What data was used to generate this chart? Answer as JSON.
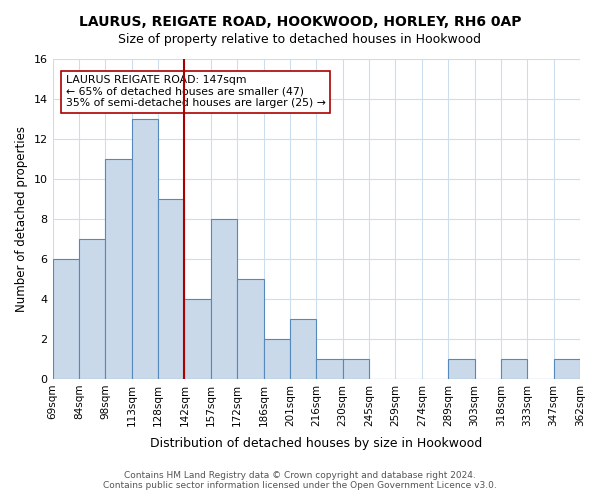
{
  "title_line1": "LAURUS, REIGATE ROAD, HOOKWOOD, HORLEY, RH6 0AP",
  "title_line2": "Size of property relative to detached houses in Hookwood",
  "xlabel": "Distribution of detached houses by size in Hookwood",
  "ylabel": "Number of detached properties",
  "bin_labels": [
    "69sqm",
    "84sqm",
    "98sqm",
    "113sqm",
    "128sqm",
    "142sqm",
    "157sqm",
    "172sqm",
    "186sqm",
    "201sqm",
    "216sqm",
    "230sqm",
    "245sqm",
    "259sqm",
    "274sqm",
    "289sqm",
    "303sqm",
    "318sqm",
    "333sqm",
    "347sqm",
    "362sqm"
  ],
  "bar_values": [
    6,
    7,
    11,
    13,
    9,
    4,
    8,
    5,
    2,
    3,
    1,
    1,
    0,
    0,
    0,
    1,
    0,
    1,
    0,
    1
  ],
  "bar_color": "#c9d9ea",
  "bar_edge_color": "#5588bb",
  "vline_x_index": 5,
  "vline_color": "#aa0000",
  "vline_label": "142sqm",
  "annotation_title": "LAURUS REIGATE ROAD: 147sqm",
  "annotation_line1": "← 65% of detached houses are smaller (47)",
  "annotation_line2": "35% of semi-detached houses are larger (25) →",
  "ylim": [
    0,
    16
  ],
  "yticks": [
    0,
    2,
    4,
    6,
    8,
    10,
    12,
    14,
    16
  ],
  "footer_line1": "Contains HM Land Registry data © Crown copyright and database right 2024.",
  "footer_line2": "Contains public sector information licensed under the Open Government Licence v3.0.",
  "bg_color": "#ffffff",
  "grid_color": "#ccddee"
}
